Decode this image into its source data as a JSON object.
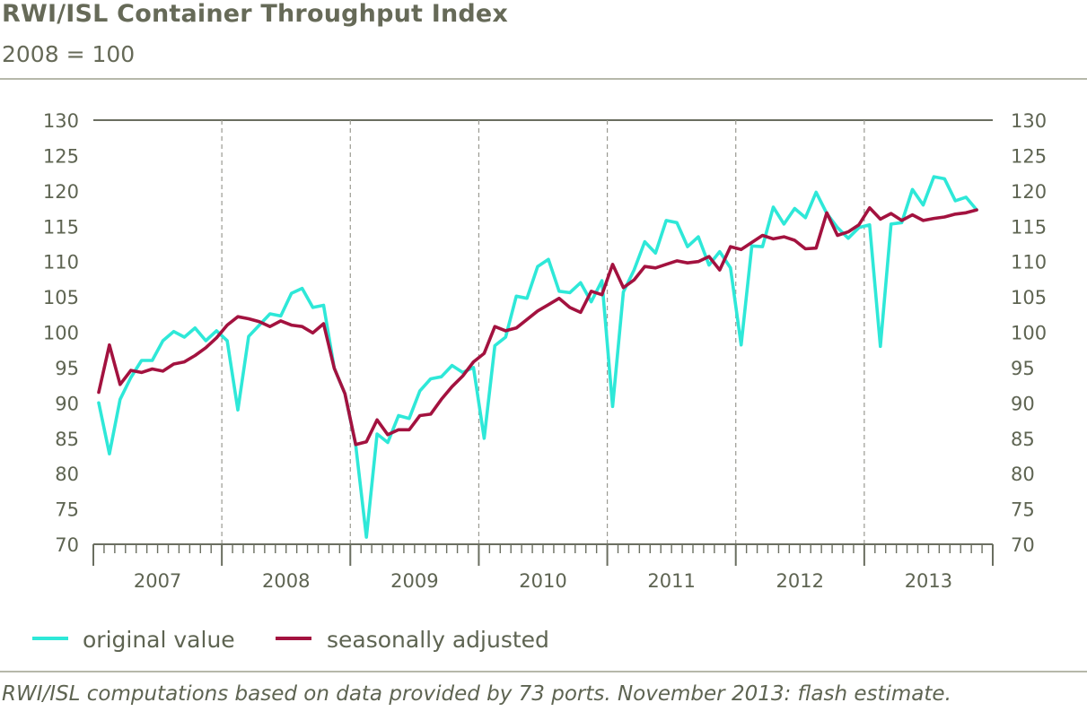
{
  "title": "RWI/ISL Container Throughput Index",
  "subtitle": "2008 = 100",
  "source": "RWI/ISL computations based on data provided by 73 ports. November 2013: flash estimate.",
  "colors": {
    "original": "#2ee8d8",
    "adjusted": "#a3123f",
    "axis": "#6a6e60",
    "grid": "#9a9a92"
  },
  "chart_data": {
    "type": "line",
    "title": "RWI/ISL Container Throughput Index",
    "subtitle": "2008 = 100",
    "xlabel": "",
    "ylabel": "",
    "ylim": [
      70,
      130
    ],
    "yticks": [
      70,
      75,
      80,
      85,
      90,
      95,
      100,
      105,
      110,
      115,
      120,
      125,
      130
    ],
    "years": [
      "2007",
      "2008",
      "2009",
      "2010",
      "2011",
      "2012",
      "2013"
    ],
    "x_start": "2007-01",
    "x_end": "2013-11",
    "legend": {
      "placement": "bottom-left",
      "entries": [
        "original value",
        "seasonally adjusted"
      ]
    },
    "grid": "vertical dashed at year boundaries, horizontal line at 130",
    "series": [
      {
        "name": "original value",
        "values": [
          90.0,
          82.8,
          90.5,
          93.6,
          96.0,
          96.0,
          98.8,
          100.1,
          99.3,
          100.6,
          98.8,
          100.2,
          98.8,
          89.0,
          99.4,
          101.0,
          102.6,
          102.3,
          105.5,
          106.2,
          103.5,
          103.8,
          94.9,
          91.3,
          84.0,
          71.0,
          85.6,
          84.4,
          88.2,
          87.8,
          91.7,
          93.4,
          93.7,
          95.3,
          94.3,
          95.0,
          85.0,
          98.1,
          99.3,
          105.1,
          104.8,
          109.3,
          110.3,
          105.8,
          105.6,
          107.0,
          104.3,
          107.3,
          89.5,
          105.7,
          108.8,
          112.8,
          111.2,
          115.8,
          115.5,
          112.1,
          113.5,
          109.5,
          111.4,
          109.1,
          98.2,
          112.2,
          112.1,
          117.7,
          115.3,
          117.5,
          116.2,
          119.8,
          116.8,
          114.8,
          113.3,
          114.8,
          115.2,
          98.0,
          115.3,
          115.5,
          120.2,
          118.0,
          122.0,
          121.7,
          118.6,
          119.1,
          117.3
        ]
      },
      {
        "name": "seasonally adjusted",
        "values": [
          91.5,
          98.2,
          92.6,
          94.6,
          94.3,
          94.8,
          94.5,
          95.5,
          95.8,
          96.7,
          97.8,
          99.2,
          101.0,
          102.2,
          101.9,
          101.5,
          100.8,
          101.6,
          101.0,
          100.8,
          99.9,
          101.2,
          94.9,
          91.3,
          84.1,
          84.5,
          87.6,
          85.5,
          86.2,
          86.2,
          88.2,
          88.4,
          90.5,
          92.3,
          93.8,
          95.8,
          97.0,
          100.8,
          100.2,
          100.6,
          101.8,
          103.0,
          103.9,
          104.8,
          103.5,
          102.8,
          105.8,
          105.3,
          109.6,
          106.3,
          107.4,
          109.3,
          109.1,
          109.6,
          110.1,
          109.8,
          110.0,
          110.7,
          108.8,
          112.1,
          111.7,
          112.7,
          113.7,
          113.2,
          113.5,
          113.0,
          111.8,
          111.9,
          116.9,
          113.7,
          114.2,
          115.2,
          117.6,
          116.0,
          116.8,
          115.8,
          116.6,
          115.8,
          116.1,
          116.3,
          116.7,
          116.9,
          117.3
        ]
      }
    ]
  }
}
